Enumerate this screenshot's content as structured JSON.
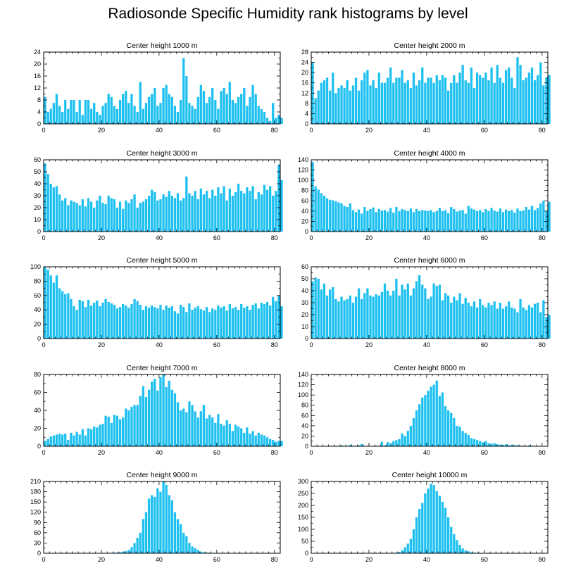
{
  "title": "Radiosonde Specific Humidity rank histograms by level",
  "colors": {
    "bar": "#1ec0f0",
    "axis": "#000000",
    "background": "#ffffff"
  },
  "chart_data": [
    {
      "type": "bar",
      "title": "Center height 1000 m",
      "xlim": [
        0,
        82
      ],
      "ylim": [
        0,
        24
      ],
      "xticks": [
        0,
        20,
        40,
        60,
        80
      ],
      "yticks": [
        0,
        4,
        8,
        12,
        16,
        20,
        24
      ],
      "values": [
        9,
        4,
        5,
        7,
        10,
        6,
        4,
        8,
        5,
        8,
        8,
        4,
        8,
        3,
        8,
        8,
        5,
        7,
        4,
        3,
        6,
        7,
        10,
        9,
        6,
        5,
        8,
        10,
        11,
        7,
        10,
        6,
        4,
        14,
        5,
        7,
        9,
        10,
        12,
        6,
        7,
        12,
        13,
        10,
        9,
        6,
        4,
        8,
        22,
        16,
        7,
        6,
        5,
        9,
        13,
        11,
        7,
        9,
        12,
        8,
        5,
        11,
        12,
        10,
        14,
        8,
        7,
        9,
        10,
        12,
        6,
        9,
        13,
        10,
        6,
        5,
        4,
        2,
        1,
        7,
        2,
        3,
        2
      ]
    },
    {
      "type": "bar",
      "title": "Center height 2000 m",
      "xlim": [
        0,
        82
      ],
      "ylim": [
        0,
        28
      ],
      "xticks": [
        0,
        20,
        40,
        60,
        80
      ],
      "yticks": [
        0,
        4,
        8,
        12,
        16,
        20,
        24,
        28
      ],
      "values": [
        24,
        10,
        13,
        16,
        17,
        18,
        13,
        20,
        12,
        14,
        15,
        14,
        17,
        13,
        15,
        18,
        13,
        17,
        20,
        21,
        15,
        17,
        14,
        20,
        16,
        16,
        18,
        22,
        16,
        18,
        18,
        21,
        16,
        17,
        14,
        20,
        15,
        17,
        22,
        16,
        18,
        18,
        16,
        19,
        17,
        19,
        18,
        13,
        16,
        19,
        16,
        20,
        23,
        17,
        16,
        22,
        14,
        20,
        19,
        18,
        20,
        17,
        22,
        16,
        23,
        18,
        16,
        21,
        22,
        18,
        14,
        26,
        23,
        17,
        18,
        20,
        22,
        17,
        19,
        24,
        15,
        18,
        19
      ]
    },
    {
      "type": "bar",
      "title": "Center height 3000 m",
      "xlim": [
        0,
        82
      ],
      "ylim": [
        0,
        60
      ],
      "xticks": [
        0,
        20,
        40,
        60,
        80
      ],
      "yticks": [
        0,
        10,
        20,
        30,
        40,
        50,
        60
      ],
      "values": [
        57,
        48,
        40,
        37,
        38,
        31,
        26,
        28,
        22,
        26,
        25,
        24,
        22,
        27,
        21,
        28,
        25,
        20,
        26,
        30,
        24,
        23,
        30,
        28,
        27,
        20,
        25,
        19,
        26,
        24,
        27,
        31,
        20,
        24,
        25,
        27,
        30,
        35,
        33,
        26,
        27,
        31,
        29,
        34,
        30,
        28,
        32,
        26,
        28,
        46,
        32,
        30,
        34,
        27,
        36,
        31,
        34,
        28,
        35,
        30,
        37,
        32,
        38,
        26,
        36,
        30,
        33,
        40,
        34,
        32,
        37,
        34,
        38,
        27,
        33,
        31,
        39,
        35,
        38,
        30,
        34,
        56,
        43
      ]
    },
    {
      "type": "bar",
      "title": "Center height 4000 m",
      "xlim": [
        0,
        82
      ],
      "ylim": [
        0,
        140
      ],
      "xticks": [
        0,
        20,
        40,
        60,
        80
      ],
      "yticks": [
        0,
        20,
        40,
        60,
        80,
        100,
        120,
        140
      ],
      "values": [
        136,
        88,
        82,
        75,
        70,
        65,
        62,
        61,
        59,
        57,
        55,
        50,
        48,
        55,
        42,
        38,
        43,
        35,
        48,
        40,
        44,
        47,
        38,
        44,
        41,
        42,
        39,
        46,
        37,
        48,
        40,
        44,
        42,
        40,
        45,
        38,
        44,
        40,
        42,
        41,
        40,
        42,
        38,
        40,
        46,
        40,
        42,
        36,
        48,
        44,
        39,
        41,
        42,
        35,
        50,
        45,
        43,
        40,
        42,
        38,
        44,
        40,
        46,
        41,
        39,
        45,
        38,
        43,
        40,
        42,
        37,
        45,
        40,
        41,
        48,
        43,
        50,
        42,
        46,
        55,
        60,
        40,
        58
      ]
    },
    {
      "type": "bar",
      "title": "Center height 5000 m",
      "xlim": [
        0,
        82
      ],
      "ylim": [
        0,
        100
      ],
      "xticks": [
        0,
        20,
        40,
        60,
        80
      ],
      "yticks": [
        0,
        20,
        40,
        60,
        80,
        100
      ],
      "values": [
        100,
        96,
        88,
        78,
        88,
        70,
        66,
        62,
        63,
        55,
        45,
        40,
        54,
        52,
        44,
        54,
        46,
        50,
        53,
        45,
        50,
        55,
        51,
        49,
        47,
        42,
        44,
        48,
        46,
        43,
        48,
        55,
        52,
        47,
        40,
        45,
        43,
        46,
        44,
        42,
        47,
        40,
        46,
        43,
        45,
        38,
        35,
        47,
        44,
        37,
        49,
        40,
        43,
        45,
        41,
        39,
        44,
        37,
        42,
        40,
        46,
        43,
        45,
        39,
        48,
        42,
        44,
        40,
        48,
        43,
        45,
        40,
        47,
        49,
        42,
        50,
        48,
        51,
        46,
        58,
        52,
        60,
        45
      ]
    },
    {
      "type": "bar",
      "title": "Center height 6000 m",
      "xlim": [
        0,
        82
      ],
      "ylim": [
        0,
        60
      ],
      "xticks": [
        0,
        20,
        40,
        60,
        80
      ],
      "yticks": [
        0,
        10,
        20,
        30,
        40,
        50,
        60
      ],
      "values": [
        48,
        51,
        50,
        41,
        46,
        36,
        41,
        43,
        33,
        31,
        35,
        32,
        33,
        36,
        30,
        35,
        42,
        33,
        38,
        42,
        36,
        35,
        37,
        36,
        39,
        46,
        40,
        36,
        40,
        50,
        36,
        45,
        41,
        46,
        36,
        42,
        48,
        53,
        45,
        42,
        33,
        35,
        46,
        44,
        45,
        32,
        38,
        36,
        30,
        35,
        32,
        38,
        29,
        34,
        30,
        27,
        31,
        26,
        33,
        28,
        26,
        30,
        28,
        31,
        25,
        30,
        25,
        27,
        31,
        26,
        25,
        22,
        33,
        26,
        24,
        28,
        26,
        29,
        30,
        22,
        32,
        18,
        20
      ]
    },
    {
      "type": "bar",
      "title": "Center height 7000 m",
      "xlim": [
        0,
        82
      ],
      "ylim": [
        0,
        80
      ],
      "xticks": [
        0,
        20,
        40,
        60,
        80
      ],
      "yticks": [
        0,
        20,
        40,
        60,
        80
      ],
      "values": [
        6,
        8,
        11,
        12,
        13,
        14,
        13,
        14,
        7,
        15,
        12,
        16,
        13,
        19,
        12,
        20,
        19,
        22,
        21,
        24,
        25,
        34,
        33,
        26,
        35,
        34,
        30,
        32,
        42,
        40,
        44,
        46,
        46,
        56,
        67,
        55,
        63,
        72,
        75,
        62,
        77,
        80,
        66,
        73,
        63,
        59,
        49,
        40,
        42,
        38,
        50,
        46,
        39,
        32,
        39,
        46,
        31,
        35,
        32,
        26,
        36,
        25,
        23,
        29,
        25,
        17,
        24,
        22,
        20,
        15,
        21,
        14,
        17,
        12,
        15,
        13,
        12,
        10,
        8,
        7,
        5,
        6,
        6
      ]
    },
    {
      "type": "bar",
      "title": "Center height 8000 m",
      "xlim": [
        0,
        82
      ],
      "ylim": [
        0,
        140
      ],
      "xticks": [
        0,
        20,
        40,
        60,
        80
      ],
      "yticks": [
        0,
        20,
        40,
        60,
        80,
        100,
        120,
        140
      ],
      "values": [
        0,
        0,
        0,
        0,
        0,
        0,
        0,
        0,
        0,
        0,
        2,
        0,
        0,
        3,
        1,
        0,
        2,
        4,
        0,
        0,
        0,
        0,
        1,
        0,
        9,
        2,
        8,
        6,
        10,
        12,
        14,
        25,
        20,
        30,
        40,
        55,
        70,
        82,
        95,
        100,
        108,
        116,
        120,
        128,
        98,
        105,
        78,
        70,
        65,
        55,
        40,
        38,
        30,
        26,
        22,
        16,
        14,
        12,
        10,
        8,
        10,
        6,
        5,
        6,
        4,
        3,
        3,
        4,
        2,
        3,
        2,
        2,
        1,
        1,
        0,
        2,
        1,
        0,
        0,
        0,
        0,
        0,
        0
      ]
    },
    {
      "type": "bar",
      "title": "Center height 9000 m",
      "xlim": [
        0,
        82
      ],
      "ylim": [
        0,
        210
      ],
      "xticks": [
        0,
        20,
        40,
        60,
        80
      ],
      "yticks": [
        0,
        30,
        60,
        90,
        120,
        150,
        180,
        210
      ],
      "values": [
        0,
        0,
        0,
        0,
        0,
        0,
        0,
        0,
        0,
        0,
        0,
        0,
        0,
        0,
        0,
        0,
        0,
        0,
        0,
        0,
        0,
        1,
        1,
        1,
        2,
        2,
        3,
        5,
        6,
        10,
        18,
        30,
        45,
        60,
        100,
        120,
        160,
        170,
        165,
        190,
        180,
        210,
        200,
        170,
        155,
        120,
        100,
        85,
        60,
        50,
        30,
        20,
        15,
        10,
        5,
        3,
        2,
        2,
        1,
        1,
        0,
        0,
        0,
        0,
        0,
        0,
        0,
        0,
        0,
        0,
        0,
        0,
        0,
        0,
        0,
        0,
        0,
        0,
        0,
        0,
        0,
        0,
        0
      ]
    },
    {
      "type": "bar",
      "title": "Center height 10000 m",
      "xlim": [
        0,
        82
      ],
      "ylim": [
        0,
        300
      ],
      "xticks": [
        0,
        20,
        40,
        60,
        80
      ],
      "yticks": [
        0,
        50,
        100,
        150,
        200,
        250,
        300
      ],
      "values": [
        0,
        0,
        0,
        0,
        0,
        0,
        0,
        0,
        0,
        0,
        0,
        0,
        0,
        0,
        0,
        0,
        0,
        0,
        0,
        0,
        0,
        0,
        0,
        0,
        0,
        0,
        0,
        1,
        2,
        3,
        5,
        12,
        25,
        40,
        60,
        100,
        150,
        185,
        210,
        250,
        270,
        290,
        285,
        260,
        240,
        215,
        190,
        150,
        110,
        80,
        55,
        35,
        20,
        12,
        8,
        4,
        3,
        2,
        1,
        1,
        0,
        0,
        0,
        0,
        0,
        0,
        0,
        0,
        0,
        0,
        0,
        0,
        0,
        0,
        0,
        0,
        0,
        0,
        0,
        0,
        0,
        0,
        0
      ]
    }
  ]
}
